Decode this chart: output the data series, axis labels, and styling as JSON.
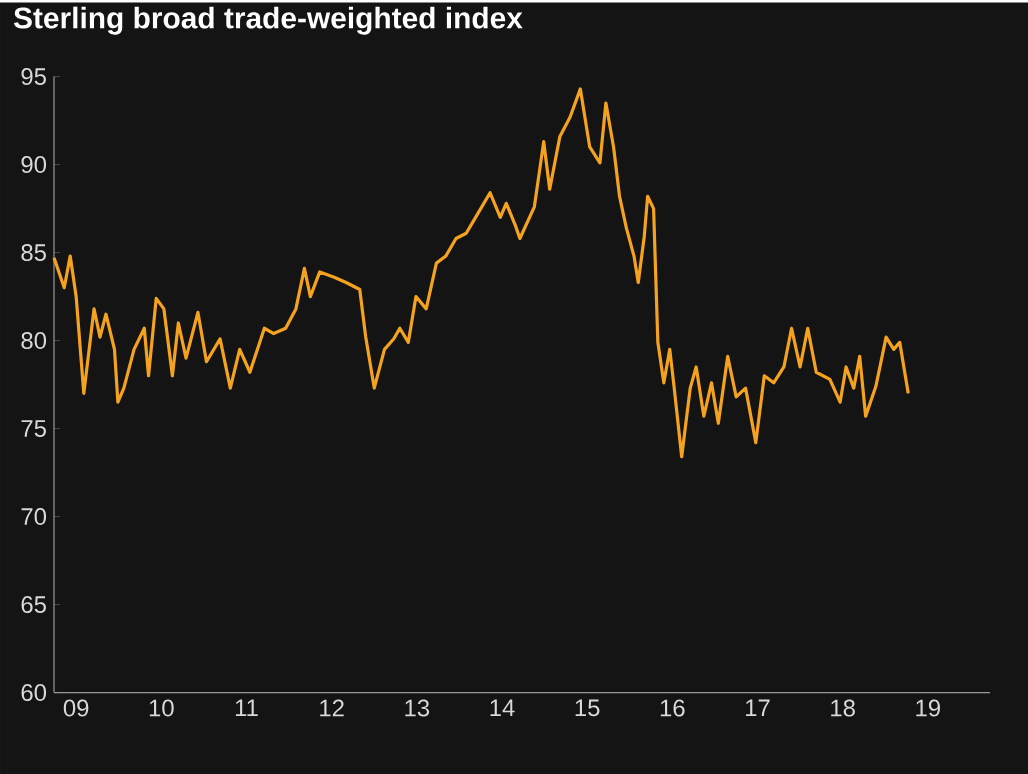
{
  "chart_data": {
    "type": "line",
    "title": "Sterling broad trade-weighted index",
    "x": [
      2008.74,
      2008.86,
      2008.93,
      2009.0,
      2009.09,
      2009.21,
      2009.28,
      2009.35,
      2009.45,
      2009.49,
      2009.56,
      2009.68,
      2009.8,
      2009.85,
      2009.94,
      2010.03,
      2010.13,
      2010.2,
      2010.29,
      2010.43,
      2010.53,
      2010.69,
      2010.81,
      2010.92,
      2011.04,
      2011.21,
      2011.32,
      2011.46,
      2011.58,
      2011.68,
      2011.75,
      2011.86,
      2012.03,
      2012.17,
      2012.33,
      2012.4,
      2012.5,
      2012.62,
      2012.73,
      2012.8,
      2012.9,
      2012.99,
      2013.11,
      2013.23,
      2013.34,
      2013.46,
      2013.58,
      2013.69,
      2013.86,
      2013.98,
      2014.05,
      2014.16,
      2014.21,
      2014.38,
      2014.49,
      2014.56,
      2014.68,
      2014.8,
      2014.92,
      2015.03,
      2015.15,
      2015.22,
      2015.31,
      2015.38,
      2015.46,
      2015.55,
      2015.6,
      2015.67,
      2015.71,
      2015.78,
      2015.83,
      2015.9,
      2015.97,
      2016.02,
      2016.11,
      2016.21,
      2016.28,
      2016.37,
      2016.46,
      2016.54,
      2016.65,
      2016.75,
      2016.86,
      2016.98,
      2017.08,
      2017.19,
      2017.31,
      2017.4,
      2017.5,
      2017.59,
      2017.69,
      2017.85,
      2017.97,
      2018.04,
      2018.13,
      2018.2,
      2018.27,
      2018.39,
      2018.51,
      2018.6,
      2018.67,
      2018.77
    ],
    "series": [
      {
        "color": "#f5a31e",
        "values": [
          84.7,
          83.0,
          84.8,
          82.5,
          77.0,
          81.8,
          80.2,
          81.5,
          79.5,
          76.5,
          77.3,
          79.5,
          80.7,
          78.0,
          82.4,
          81.8,
          78.0,
          81.0,
          79.0,
          81.6,
          78.8,
          80.1,
          77.3,
          79.5,
          78.2,
          80.7,
          80.4,
          80.7,
          81.8,
          84.1,
          82.5,
          83.9,
          83.6,
          83.3,
          82.9,
          80.2,
          77.3,
          79.5,
          80.1,
          80.7,
          79.9,
          82.5,
          81.8,
          84.4,
          84.8,
          85.8,
          86.1,
          87.0,
          88.4,
          87.0,
          87.8,
          86.5,
          85.8,
          87.6,
          91.3,
          88.6,
          91.6,
          92.7,
          94.3,
          91.0,
          90.1,
          93.5,
          91.0,
          88.2,
          86.4,
          84.8,
          83.3,
          85.9,
          88.2,
          87.5,
          79.9,
          77.6,
          79.5,
          77.4,
          73.4,
          77.3,
          78.5,
          75.7,
          77.6,
          75.3,
          79.1,
          76.8,
          77.3,
          74.2,
          78.0,
          77.6,
          78.5,
          80.7,
          78.5,
          80.7,
          78.2,
          77.8,
          76.5,
          78.5,
          77.3,
          79.1,
          75.7,
          77.4,
          80.2,
          79.5,
          79.9,
          77.0
        ]
      }
    ],
    "xlim": [
      2008.74,
      2019.73
    ],
    "xticks": [
      {
        "value": 2009,
        "label": "09"
      },
      {
        "value": 2010,
        "label": "10"
      },
      {
        "value": 2011,
        "label": "11"
      },
      {
        "value": 2012,
        "label": "12"
      },
      {
        "value": 2013,
        "label": "13"
      },
      {
        "value": 2014,
        "label": "14"
      },
      {
        "value": 2015,
        "label": "15"
      },
      {
        "value": 2016,
        "label": "16"
      },
      {
        "value": 2017,
        "label": "17"
      },
      {
        "value": 2018,
        "label": "18"
      },
      {
        "value": 2019,
        "label": "19"
      }
    ],
    "ylim": [
      60,
      95
    ],
    "yticks": [
      60,
      65,
      70,
      75,
      80,
      85,
      90,
      95
    ]
  }
}
